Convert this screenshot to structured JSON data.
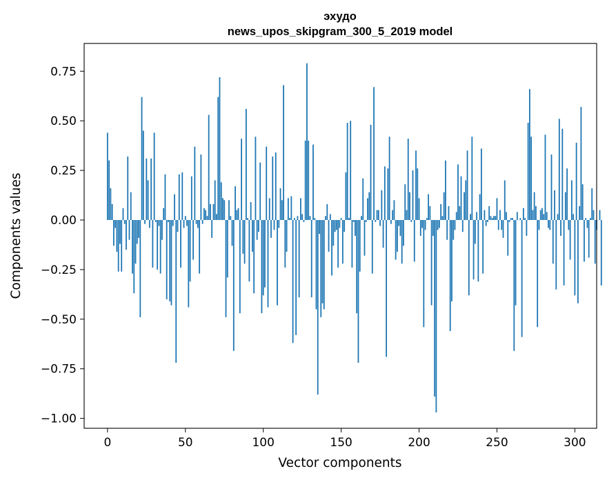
{
  "chart_data": {
    "type": "bar",
    "title": "эхудо",
    "subtitle": "news_upos_skipgram_300_5_2019 model",
    "xlabel": "Vector components",
    "ylabel": "Components values",
    "xlim": [
      -15,
      314
    ],
    "ylim": [
      -1.05,
      0.89
    ],
    "x_ticks": [
      0,
      50,
      100,
      150,
      200,
      250,
      300
    ],
    "x_tick_labels": [
      "0",
      "50",
      "100",
      "150",
      "200",
      "250",
      "300"
    ],
    "y_ticks": [
      0.75,
      0.5,
      0.25,
      0.0,
      -0.25,
      -0.5,
      -0.75,
      -1.0
    ],
    "y_tick_labels": [
      "0.75",
      "0.50",
      "0.25",
      "0.00",
      "−0.25",
      "−0.50",
      "−0.75",
      "−1.00"
    ],
    "bar_color": "#1f77b4",
    "grid": false,
    "legend": "none",
    "values": [
      0.44,
      0.3,
      0.16,
      0.08,
      -0.13,
      -0.04,
      -0.16,
      -0.26,
      -0.12,
      -0.26,
      0.06,
      -0.02,
      -0.15,
      0.32,
      -0.1,
      0.14,
      -0.27,
      -0.37,
      -0.22,
      -0.12,
      -0.09,
      -0.49,
      0.62,
      0.45,
      -0.02,
      0.31,
      0.2,
      -0.04,
      0.31,
      -0.24,
      0.44,
      -0.01,
      -0.25,
      -0.03,
      -0.27,
      -0.1,
      0.06,
      0.23,
      -0.4,
      -0.01,
      -0.41,
      -0.43,
      -0.03,
      0.13,
      -0.72,
      -0.06,
      0.23,
      -0.24,
      0.24,
      -0.04,
      0.02,
      -0.03,
      -0.44,
      -0.31,
      0.22,
      -0.2,
      0.37,
      -0.02,
      -0.04,
      -0.27,
      0.33,
      -0.02,
      0.06,
      0.05,
      0.02,
      0.53,
      0.08,
      -0.09,
      0.08,
      0.2,
      0.03,
      0.62,
      0.72,
      0.19,
      0.11,
      0.1,
      -0.49,
      -0.29,
      0.1,
      0.02,
      -0.13,
      -0.66,
      0.17,
      0.05,
      0.06,
      -0.47,
      0.41,
      -0.17,
      -0.22,
      0.56,
      0.01,
      -0.31,
      0.09,
      -0.16,
      -0.37,
      0.42,
      -0.1,
      -0.06,
      0.29,
      -0.47,
      -0.38,
      -0.34,
      0.37,
      -0.44,
      0.11,
      -0.09,
      0.32,
      -0.05,
      0.34,
      -0.43,
      -0.04,
      0.16,
      0.1,
      0.68,
      -0.24,
      -0.16,
      0.11,
      0.01,
      0.12,
      -0.62,
      0.01,
      -0.58,
      0.02,
      -0.39,
      0.11,
      0.03,
      -0.01,
      0.4,
      0.79,
      0.4,
      0.02,
      -0.39,
      0.38,
      0.01,
      -0.45,
      -0.88,
      -0.07,
      -0.49,
      -0.42,
      -0.45,
      0.02,
      0.08,
      -0.16,
      0.03,
      -0.28,
      -0.13,
      -0.06,
      -0.05,
      -0.24,
      -0.04,
      0.01,
      -0.22,
      -0.06,
      0.24,
      0.49,
      0.01,
      0.5,
      -0.24,
      -0.01,
      -0.08,
      -0.47,
      -0.72,
      -0.26,
      0.02,
      0.21,
      -0.18,
      -0.01,
      0.11,
      0.14,
      0.48,
      -0.27,
      0.67,
      -0.01,
      0.05,
      0.05,
      -0.03,
      0.15,
      -0.14,
      0.27,
      -0.69,
      0.26,
      0.42,
      -0.02,
      0.05,
      0.1,
      -0.2,
      -0.16,
      -0.03,
      -0.08,
      -0.22,
      -0.13,
      0.18,
      0.05,
      0.41,
      0.14,
      -0.01,
      0.25,
      -0.21,
      0.35,
      0.26,
      0.11,
      -0.08,
      -0.04,
      -0.54,
      -0.05,
      0.01,
      0.13,
      0.07,
      -0.43,
      -0.08,
      -0.89,
      -0.97,
      -0.05,
      -0.04,
      0.08,
      0.02,
      0.14,
      0.3,
      -0.1,
      0.07,
      -0.56,
      -0.41,
      -0.1,
      -0.05,
      0.04,
      0.28,
      0.07,
      0.22,
      -0.06,
      0.14,
      0.2,
      0.35,
      -0.38,
      0.03,
      0.42,
      -0.3,
      -0.12,
      0.04,
      -0.31,
      0.13,
      0.36,
      -0.27,
      0.05,
      -0.03,
      -0.01,
      0.07,
      0.02,
      0.01,
      0.02,
      0.02,
      0.11,
      -0.05,
      0.05,
      -0.05,
      -0.09,
      0.2,
      0.04,
      -0.18,
      -0.01,
      0.01,
      0.01,
      -0.66,
      -0.43,
      0.04,
      0.0,
      0.01,
      -0.59,
      0.06,
      0.01,
      -0.08,
      0.49,
      0.66,
      0.42,
      0.05,
      0.14,
      0.07,
      -0.54,
      -0.05,
      0.05,
      0.06,
      0.03,
      0.43,
      0.04,
      -0.04,
      -0.05,
      0.33,
      -0.22,
      0.15,
      -0.35,
      0.03,
      0.51,
      -0.08,
      0.46,
      -0.33,
      0.14,
      0.26,
      -0.05,
      -0.2,
      0.2,
      0.03,
      -0.38,
      0.39,
      -0.42,
      0.07,
      0.57,
      0.18,
      -0.21,
      0.01,
      -0.04,
      -0.19,
      0.01,
      0.16,
      0.05,
      -0.22,
      -0.05,
      0.0,
      0.05,
      -0.33
    ]
  }
}
